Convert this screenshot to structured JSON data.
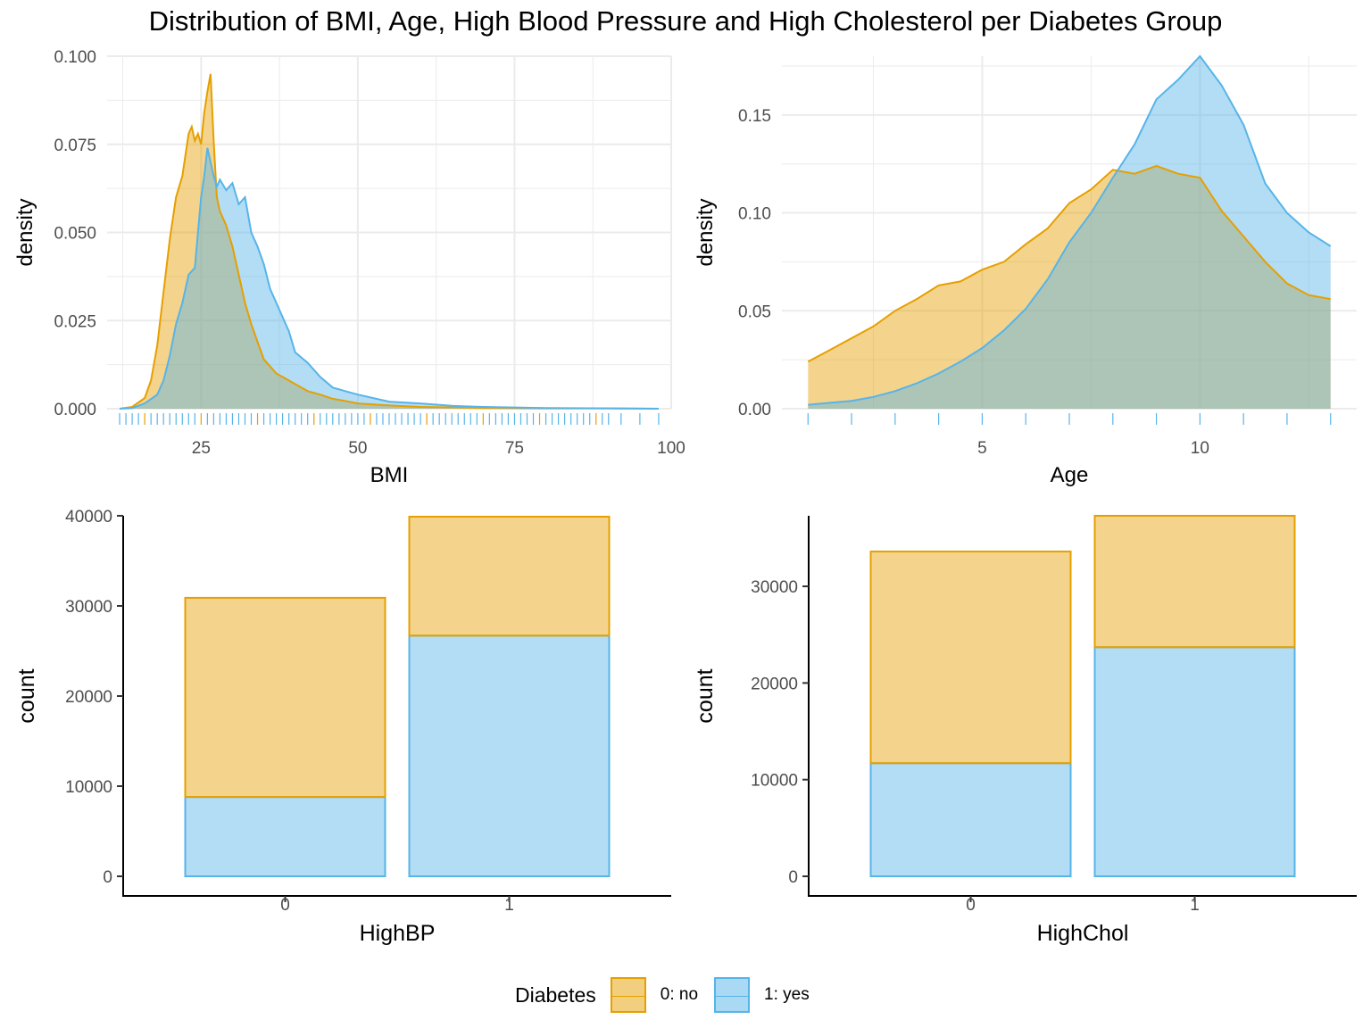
{
  "title": "Distribution of BMI, Age, High Blood Pressure and High Cholesterol per Diabetes Group",
  "colors": {
    "no": "#E69F00",
    "yes": "#56B4E9"
  },
  "legend": {
    "title": "Diabetes",
    "items": [
      {
        "label": "0: no",
        "color": "#E69F00"
      },
      {
        "label": "1: yes",
        "color": "#56B4E9"
      }
    ]
  },
  "chart_data": [
    {
      "type": "area",
      "xlabel": "BMI",
      "ylabel": "density",
      "xlim": [
        10,
        100
      ],
      "ylim": [
        0,
        0.1
      ],
      "xticks": [
        25,
        50,
        75,
        100
      ],
      "yticks": [
        0,
        0.025,
        0.05,
        0.075,
        0.1
      ],
      "ytick_labels": [
        "0.000",
        "0.025",
        "0.050",
        "0.075",
        "0.100"
      ],
      "grid": true,
      "rug": true,
      "series": [
        {
          "name": "0: no",
          "x": [
            12,
            14,
            16,
            17,
            18,
            19,
            20,
            21,
            22,
            23,
            23.5,
            24,
            24.5,
            25,
            25.5,
            26,
            26.5,
            27,
            27.5,
            28,
            29,
            30,
            31,
            32,
            33,
            34,
            35,
            36,
            37,
            38,
            40,
            42,
            44,
            46,
            48,
            50,
            55,
            60,
            70,
            80,
            90,
            98
          ],
          "y": [
            0,
            0.0005,
            0.003,
            0.008,
            0.018,
            0.033,
            0.048,
            0.06,
            0.066,
            0.078,
            0.08,
            0.076,
            0.078,
            0.075,
            0.084,
            0.09,
            0.095,
            0.076,
            0.06,
            0.056,
            0.052,
            0.046,
            0.038,
            0.03,
            0.024,
            0.019,
            0.014,
            0.012,
            0.01,
            0.009,
            0.007,
            0.005,
            0.004,
            0.0028,
            0.0022,
            0.0015,
            0.0009,
            0.0005,
            0.0002,
            0.0001,
            0.0001,
            0
          ]
        },
        {
          "name": "1: yes",
          "x": [
            12,
            14,
            16,
            18,
            19,
            20,
            21,
            22,
            23,
            24,
            24.5,
            25,
            25.5,
            26,
            26.5,
            27,
            27.5,
            28,
            29,
            30,
            31,
            32,
            33,
            34,
            35,
            36,
            37,
            38,
            39,
            40,
            42,
            44,
            46,
            48,
            50,
            55,
            60,
            65,
            70,
            80,
            90,
            98
          ],
          "y": [
            0,
            0.0002,
            0.0015,
            0.004,
            0.008,
            0.015,
            0.024,
            0.03,
            0.038,
            0.04,
            0.05,
            0.06,
            0.066,
            0.074,
            0.07,
            0.066,
            0.063,
            0.065,
            0.062,
            0.064,
            0.058,
            0.06,
            0.05,
            0.046,
            0.041,
            0.034,
            0.03,
            0.026,
            0.022,
            0.016,
            0.013,
            0.009,
            0.006,
            0.005,
            0.004,
            0.002,
            0.0015,
            0.0008,
            0.0005,
            0.0002,
            0.0001,
            0
          ]
        }
      ],
      "rug_x": [
        12,
        13,
        14,
        15,
        16,
        17,
        18,
        19,
        20,
        21,
        22,
        23,
        24,
        25,
        26,
        27,
        28,
        29,
        30,
        31,
        32,
        33,
        34,
        35,
        36,
        37,
        38,
        39,
        40,
        41,
        42,
        43,
        44,
        45,
        46,
        47,
        48,
        49,
        50,
        51,
        52,
        53,
        54,
        55,
        56,
        57,
        58,
        59,
        60,
        61,
        62,
        63,
        64,
        65,
        66,
        67,
        68,
        69,
        70,
        71,
        72,
        73,
        74,
        75,
        76,
        77,
        78,
        79,
        80,
        81,
        82,
        83,
        84,
        85,
        86,
        87,
        88,
        89,
        90,
        92,
        95,
        98
      ]
    },
    {
      "type": "area",
      "xlabel": "Age",
      "ylabel": "density",
      "xlim": [
        0.4,
        13.6
      ],
      "ylim": [
        0,
        0.18
      ],
      "xticks": [
        5,
        10
      ],
      "yticks": [
        0,
        0.05,
        0.1,
        0.15
      ],
      "ytick_labels": [
        "0.00",
        "0.05",
        "0.10",
        "0.15"
      ],
      "grid": true,
      "rug": true,
      "series": [
        {
          "name": "0: no",
          "x": [
            1,
            1.5,
            2,
            2.5,
            3,
            3.5,
            4,
            4.5,
            5,
            5.5,
            6,
            6.5,
            7,
            7.5,
            8,
            8.5,
            9,
            9.5,
            10,
            10.5,
            11,
            11.5,
            12,
            12.5,
            13
          ],
          "y": [
            0.024,
            0.03,
            0.036,
            0.042,
            0.05,
            0.056,
            0.063,
            0.065,
            0.071,
            0.075,
            0.084,
            0.092,
            0.105,
            0.112,
            0.122,
            0.12,
            0.124,
            0.12,
            0.118,
            0.101,
            0.088,
            0.075,
            0.064,
            0.058,
            0.056
          ]
        },
        {
          "name": "1: yes",
          "x": [
            1,
            1.5,
            2,
            2.5,
            3,
            3.5,
            4,
            4.5,
            5,
            5.5,
            6,
            6.5,
            7,
            7.5,
            8,
            8.5,
            9,
            9.5,
            10,
            10.5,
            11,
            11.5,
            12,
            12.5,
            13
          ],
          "y": [
            0.002,
            0.003,
            0.004,
            0.006,
            0.009,
            0.013,
            0.018,
            0.024,
            0.031,
            0.04,
            0.051,
            0.066,
            0.085,
            0.1,
            0.118,
            0.135,
            0.158,
            0.168,
            0.18,
            0.165,
            0.145,
            0.115,
            0.1,
            0.09,
            0.083
          ]
        }
      ],
      "rug_x": [
        1,
        2,
        3,
        4,
        5,
        6,
        7,
        8,
        9,
        10,
        11,
        12,
        13
      ]
    },
    {
      "type": "bar",
      "stacked": true,
      "xlabel": "HighBP",
      "ylabel": "count",
      "categories": [
        "0",
        "1"
      ],
      "ylim": [
        0,
        40000
      ],
      "yticks": [
        0,
        10000,
        20000,
        30000,
        40000
      ],
      "grid": false,
      "series": [
        {
          "name": "1: yes",
          "values": [
            8800,
            26700
          ]
        },
        {
          "name": "0: no",
          "values": [
            22100,
            13200
          ]
        }
      ]
    },
    {
      "type": "bar",
      "stacked": true,
      "xlabel": "HighChol",
      "ylabel": "count",
      "categories": [
        "0",
        "1"
      ],
      "ylim": [
        0,
        37300
      ],
      "yticks": [
        0,
        10000,
        20000,
        30000
      ],
      "grid": false,
      "series": [
        {
          "name": "1: yes",
          "values": [
            11700,
            23700
          ]
        },
        {
          "name": "0: no",
          "values": [
            21900,
            13600
          ]
        }
      ]
    }
  ]
}
